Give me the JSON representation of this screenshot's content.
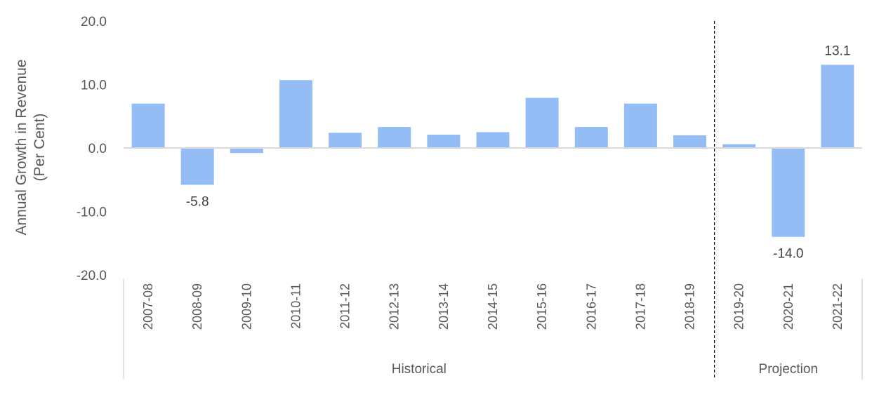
{
  "chart_data": {
    "type": "bar",
    "ylabel": [
      "Annual Growth in Revenue",
      "(Per Cent)"
    ],
    "ylim": [
      -20,
      20
    ],
    "yticks": [
      "20.0",
      "10.0",
      "0.0",
      "-10.0",
      "-20.0"
    ],
    "ytick_values": [
      20,
      10,
      0,
      -10,
      -20
    ],
    "categories": [
      "2007-08",
      "2008-09",
      "2009-10",
      "2010-11",
      "2011-12",
      "2012-13",
      "2013-14",
      "2014-15",
      "2015-16",
      "2016-17",
      "2017-18",
      "2018-19",
      "2019-20",
      "2020-21",
      "2021-22"
    ],
    "values": [
      7.0,
      -5.8,
      -0.8,
      10.7,
      2.4,
      3.3,
      2.1,
      2.5,
      7.9,
      3.3,
      7.0,
      2.0,
      0.6,
      -14.0,
      13.1
    ],
    "data_labels": [
      {
        "index": 1,
        "text": "-5.8"
      },
      {
        "index": 13,
        "text": "-14.0"
      },
      {
        "index": 14,
        "text": "13.1"
      }
    ],
    "groups": [
      {
        "label": "Historical",
        "start": 0,
        "end": 11
      },
      {
        "label": "Projection",
        "start": 12,
        "end": 14
      }
    ],
    "bar_color": "#94bdf5",
    "axis_color": "#d9d9d9",
    "grid": false,
    "legend": "none"
  }
}
